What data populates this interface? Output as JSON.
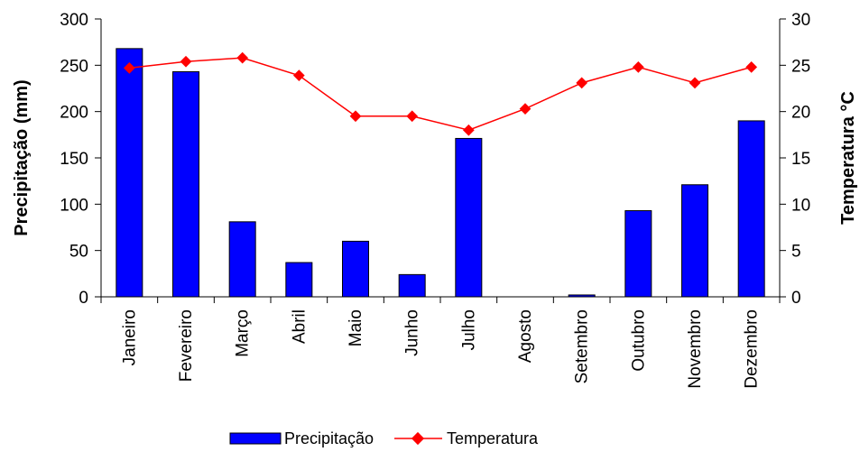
{
  "chart_data": {
    "type": "bar",
    "categories": [
      "Janeiro",
      "Fevereiro",
      "Março",
      "Abril",
      "Maio",
      "Junho",
      "Julho",
      "Agosto",
      "Setembro",
      "Outubro",
      "Novembro",
      "Dezembro"
    ],
    "series": [
      {
        "name": "Precipitação",
        "type": "bar",
        "axis": "left",
        "color": "#0000ff",
        "values": [
          268,
          243,
          81,
          37,
          60,
          24,
          171,
          0,
          2,
          93,
          121,
          190
        ]
      },
      {
        "name": "Temperatura",
        "type": "line",
        "axis": "right",
        "color": "#ff0000",
        "values": [
          24.7,
          25.4,
          25.8,
          23.9,
          19.5,
          19.5,
          18.0,
          20.3,
          23.1,
          24.8,
          23.1,
          24.8
        ]
      }
    ],
    "ylabel": "Precipitação (mm)",
    "y2label": "Temperatura °C",
    "ylim": [
      0,
      300
    ],
    "y2lim": [
      0,
      30
    ],
    "yticks": [
      "0",
      "50",
      "100",
      "150",
      "200",
      "250",
      "300"
    ],
    "y2ticks": [
      "0",
      "5",
      "10",
      "15",
      "20",
      "25",
      "30"
    ],
    "grid": false,
    "legend": "bottom"
  }
}
